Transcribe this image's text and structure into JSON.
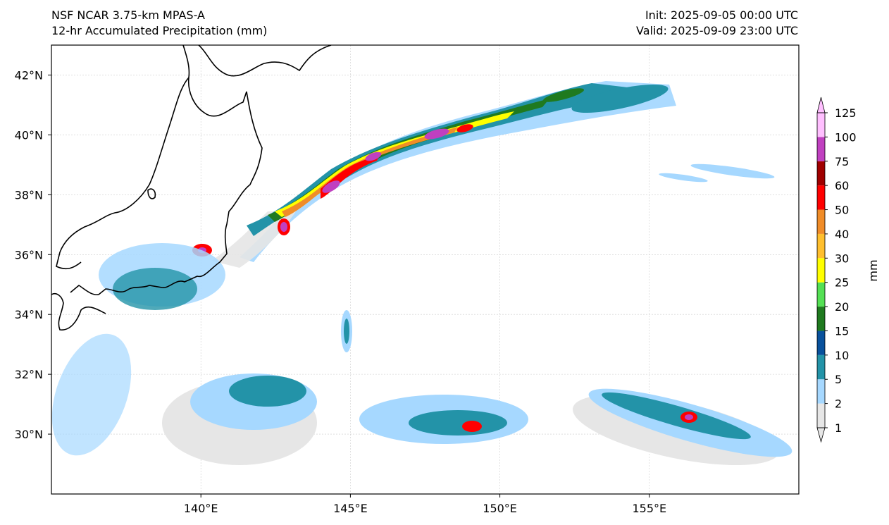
{
  "header": {
    "model": "NSF NCAR 3.75-km MPAS-A",
    "field": "12-hr Accumulated Precipitation (mm)",
    "init": "Init: 2025-09-05 00:00 UTC",
    "valid": "Valid: 2025-09-09 23:00 UTC"
  },
  "map": {
    "lon_range": [
      135,
      160
    ],
    "lat_range": [
      28,
      43
    ],
    "lon_ticks": [
      {
        "value": 140,
        "label": "140°E"
      },
      {
        "value": 145,
        "label": "145°E"
      },
      {
        "value": 150,
        "label": "150°E"
      },
      {
        "value": 155,
        "label": "155°E"
      }
    ],
    "lat_ticks": [
      {
        "value": 30,
        "label": "30°N"
      },
      {
        "value": 32,
        "label": "32°N"
      },
      {
        "value": 34,
        "label": "34°N"
      },
      {
        "value": 36,
        "label": "36°N"
      },
      {
        "value": 38,
        "label": "38°N"
      },
      {
        "value": 40,
        "label": "40°N"
      },
      {
        "value": 42,
        "label": "42°N"
      }
    ]
  },
  "colorbar": {
    "unit": "mm",
    "levels": [
      "1",
      "2",
      "5",
      "10",
      "15",
      "20",
      "25",
      "30",
      "40",
      "50",
      "60",
      "75",
      "100",
      "125"
    ],
    "colors": [
      "#e6e6e6",
      "#a6d8ff",
      "#2393a8",
      "#08519c",
      "#1f7a1f",
      "#54e054",
      "#ffff00",
      "#ffbf2e",
      "#f08c28",
      "#ff0000",
      "#a00000",
      "#c040c0",
      "#ffbfff"
    ]
  }
}
